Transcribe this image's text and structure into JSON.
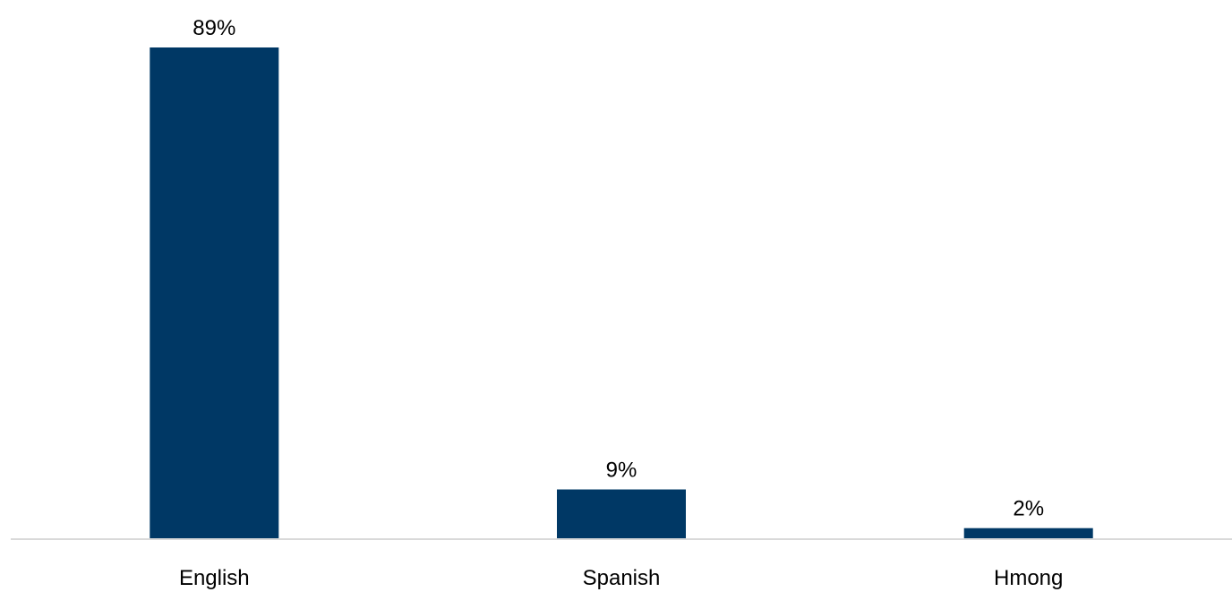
{
  "chart_data": {
    "type": "bar",
    "categories": [
      "English",
      "Spanish",
      "Hmong"
    ],
    "values": [
      89,
      9,
      2
    ],
    "data_labels": [
      "89%",
      "9%",
      "2%"
    ],
    "unit": "%",
    "title": "",
    "xlabel": "",
    "ylabel": "",
    "ylim": [
      0,
      89
    ],
    "grid": false,
    "legend": "none",
    "colors": {
      "bar": "#003865",
      "axis": "#d9d9d9"
    }
  }
}
